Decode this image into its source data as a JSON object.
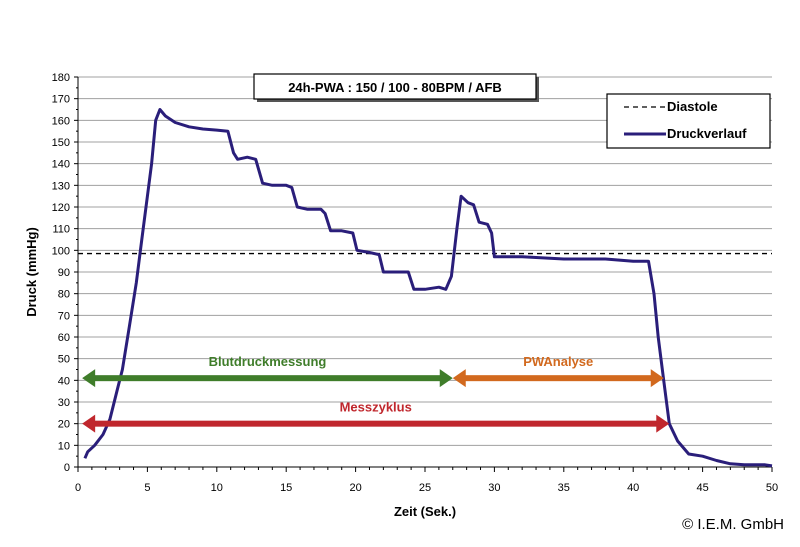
{
  "chart_data": {
    "type": "line",
    "title": "24h-PWA : 150 / 100 - 80BPM  /  AFB",
    "xlabel": "Zeit (Sek.)",
    "ylabel": "Druck (mmHg)",
    "xlim": [
      0,
      50
    ],
    "ylim": [
      0,
      180
    ],
    "xticks": [
      0,
      5,
      10,
      15,
      20,
      25,
      30,
      35,
      40,
      45,
      50
    ],
    "yticks": [
      0,
      10,
      20,
      30,
      40,
      50,
      60,
      70,
      80,
      90,
      100,
      110,
      120,
      130,
      140,
      150,
      160,
      170,
      180
    ],
    "grid": true,
    "legend_position": "top-right",
    "series": [
      {
        "name": "Diastole",
        "style": "dashed",
        "color": "#000000",
        "y": 98.5
      },
      {
        "name": "Druckverlauf",
        "style": "solid",
        "color": "#2a1e7a",
        "points": [
          [
            0.5,
            4
          ],
          [
            0.7,
            7
          ],
          [
            1.2,
            10
          ],
          [
            1.8,
            15
          ],
          [
            2.3,
            22
          ],
          [
            2.8,
            35
          ],
          [
            3.2,
            45
          ],
          [
            3.7,
            65
          ],
          [
            4.2,
            85
          ],
          [
            4.6,
            105
          ],
          [
            5.0,
            125
          ],
          [
            5.3,
            140
          ],
          [
            5.6,
            160
          ],
          [
            5.9,
            165
          ],
          [
            6.3,
            162
          ],
          [
            7,
            159
          ],
          [
            8,
            157
          ],
          [
            9,
            156
          ],
          [
            10,
            155.5
          ],
          [
            10.8,
            155
          ],
          [
            11.2,
            145
          ],
          [
            11.5,
            142
          ],
          [
            12.2,
            143
          ],
          [
            12.8,
            142
          ],
          [
            13.3,
            131
          ],
          [
            14,
            130
          ],
          [
            15,
            130
          ],
          [
            15.4,
            129
          ],
          [
            15.8,
            120
          ],
          [
            16.5,
            119
          ],
          [
            17.5,
            119
          ],
          [
            17.8,
            117
          ],
          [
            18.2,
            109
          ],
          [
            19,
            109
          ],
          [
            19.8,
            108
          ],
          [
            20.1,
            100
          ],
          [
            21,
            99
          ],
          [
            21.7,
            98
          ],
          [
            22.0,
            90
          ],
          [
            23,
            90
          ],
          [
            23.8,
            90
          ],
          [
            24.2,
            82
          ],
          [
            25,
            82
          ],
          [
            26,
            83
          ],
          [
            26.5,
            82
          ],
          [
            26.9,
            88
          ],
          [
            27.3,
            110
          ],
          [
            27.6,
            125
          ],
          [
            28.1,
            122
          ],
          [
            28.5,
            121
          ],
          [
            28.9,
            113
          ],
          [
            29.5,
            112
          ],
          [
            29.8,
            108
          ],
          [
            30,
            97
          ],
          [
            32,
            97
          ],
          [
            35,
            96
          ],
          [
            38,
            96
          ],
          [
            40,
            95
          ],
          [
            41.1,
            95
          ],
          [
            41.5,
            80
          ],
          [
            41.8,
            60
          ],
          [
            42.2,
            40
          ],
          [
            42.6,
            20
          ],
          [
            43.2,
            12
          ],
          [
            44,
            6
          ],
          [
            45,
            5
          ],
          [
            46,
            3
          ],
          [
            47,
            1.5
          ],
          [
            48,
            1
          ],
          [
            49,
            1
          ],
          [
            49.5,
            1
          ],
          [
            50,
            0.5
          ]
        ]
      }
    ],
    "annotations": [
      {
        "text": "Blutdruckmessung",
        "from": 0.3,
        "to": 27,
        "y": 41,
        "color": "#3f7d2a"
      },
      {
        "text": "PWAnalyse",
        "from": 27,
        "to": 42.2,
        "y": 41,
        "color": "#d2691e"
      },
      {
        "text": "Messzyklus",
        "from": 0.3,
        "to": 42.6,
        "y": 20,
        "color": "#c0272d"
      }
    ]
  },
  "copyright": "© I.E.M. GmbH"
}
